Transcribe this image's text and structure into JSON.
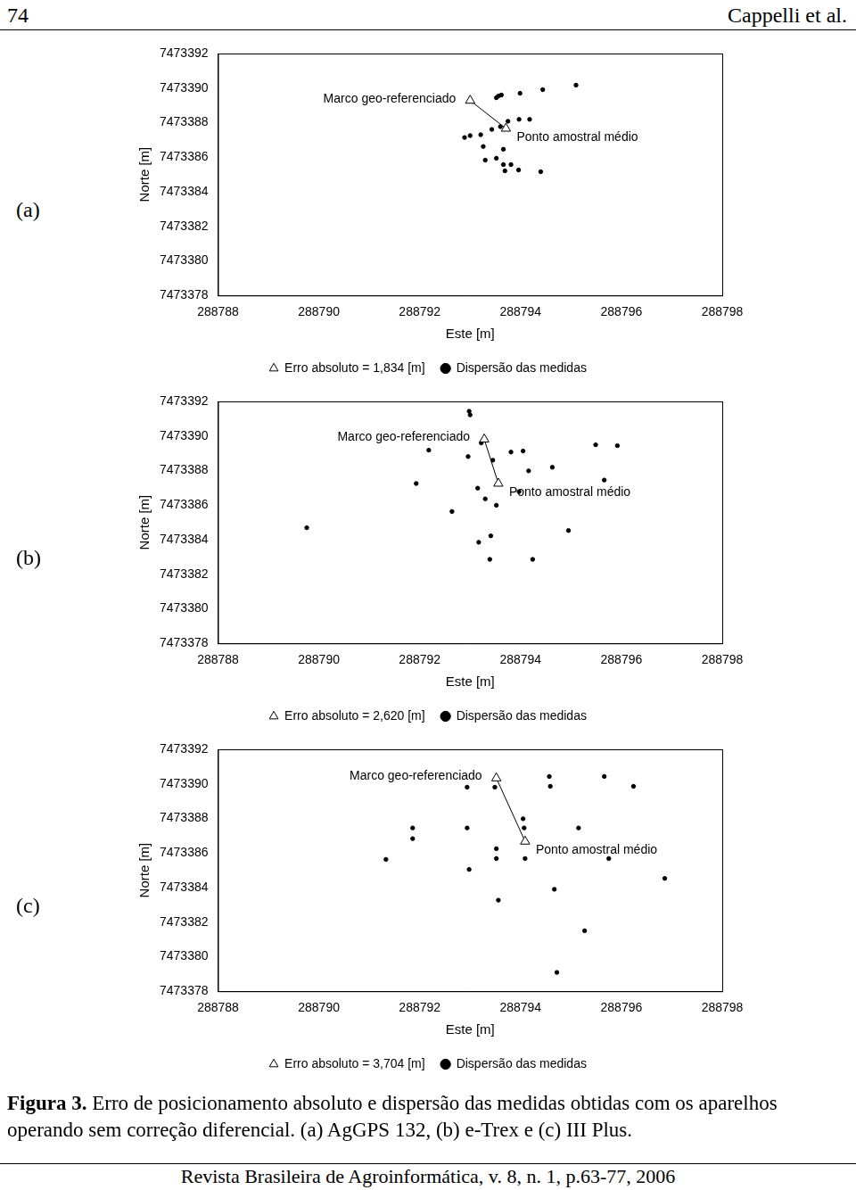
{
  "header": {
    "page_number": "74",
    "authors": "Cappelli et al."
  },
  "chart_data": [
    {
      "type": "scatter",
      "panel_label": "(a)",
      "x_label": "Este [m]",
      "y_label": "Norte [m]",
      "xlim": [
        288788,
        288798
      ],
      "xticks": [
        288788,
        288790,
        288792,
        288794,
        288796,
        288798
      ],
      "ylim": [
        7473378,
        7473392
      ],
      "yticks": [
        7473378,
        7473380,
        7473382,
        7473384,
        7473386,
        7473388,
        7473390,
        7473392
      ],
      "grid": false,
      "legend": "bottom",
      "annotations": [
        "Marco geo-referenciado",
        "Ponto amostral médio"
      ],
      "series": [
        {
          "name": "Erro absoluto = 1,834 [m]",
          "marker": "triangle",
          "line_style": "solid",
          "color": "#000000",
          "x": [
            288793.0,
            288793.71
          ],
          "y": [
            7473389.28,
            7473387.66
          ]
        },
        {
          "name": "Dispersão das medidas",
          "marker": "circle",
          "color": "#000000",
          "x": [
            288793.52,
            288793.56,
            288793.62,
            288793.99,
            288794.44,
            288795.1,
            288793.75,
            288793.97,
            288794.18,
            288793.43,
            288793.6,
            288792.89,
            288793.0,
            288793.21,
            288793.26,
            288793.66,
            288793.3,
            288793.52,
            288793.66,
            288793.81,
            288793.69,
            288793.96,
            288794.4
          ],
          "y": [
            7473389.44,
            7473389.54,
            7473389.6,
            7473389.7,
            7473389.91,
            7473390.17,
            7473388.08,
            7473388.19,
            7473388.19,
            7473387.61,
            7473387.77,
            7473387.14,
            7473387.25,
            7473387.3,
            7473386.62,
            7473386.46,
            7473385.83,
            7473385.94,
            7473385.57,
            7473385.57,
            7473385.21,
            7473385.26,
            7473385.16
          ]
        }
      ]
    },
    {
      "type": "scatter",
      "panel_label": "(b)",
      "x_label": "Este [m]",
      "y_label": "Norte [m]",
      "xlim": [
        288788,
        288798
      ],
      "xticks": [
        288788,
        288790,
        288792,
        288794,
        288796,
        288798
      ],
      "ylim": [
        7473378,
        7473392
      ],
      "yticks": [
        7473378,
        7473380,
        7473382,
        7473384,
        7473386,
        7473388,
        7473390,
        7473392
      ],
      "grid": false,
      "legend": "bottom",
      "annotations": [
        "Marco geo-referenciado",
        "Ponto amostral médio"
      ],
      "series": [
        {
          "name": "Erro absoluto = 2,620 [m]",
          "marker": "triangle",
          "line_style": "solid",
          "color": "#000000",
          "x": [
            288793.28,
            288793.56
          ],
          "y": [
            7473389.81,
            7473387.25
          ]
        },
        {
          "name": "Dispersão das medidas",
          "marker": "circle",
          "color": "#000000",
          "x": [
            288792.98,
            288793.0,
            288792.18,
            288793.22,
            288793.81,
            288794.05,
            288792.96,
            288793.45,
            288794.16,
            288794.63,
            288795.49,
            288795.92,
            288791.93,
            288793.15,
            288793.97,
            288793.3,
            288793.52,
            288795.66,
            288792.64,
            288789.76,
            288794.95,
            288793.41,
            288793.17,
            288793.39,
            288794.24
          ],
          "y": [
            7473391.43,
            7473391.22,
            7473389.18,
            7473389.6,
            7473389.07,
            7473389.13,
            7473388.81,
            7473388.6,
            7473387.98,
            7473388.19,
            7473389.49,
            7473389.44,
            7473387.25,
            7473386.98,
            7473386.78,
            7473386.36,
            7473385.99,
            7473387.45,
            7473385.63,
            7473384.69,
            7473384.53,
            7473384.22,
            7473383.85,
            7473382.86,
            7473382.86
          ]
        }
      ]
    },
    {
      "type": "scatter",
      "panel_label": "(c)",
      "x_label": "Este [m]",
      "y_label": "Norte [m]",
      "xlim": [
        288788,
        288798
      ],
      "xticks": [
        288788,
        288790,
        288792,
        288794,
        288796,
        288798
      ],
      "ylim": [
        7473378,
        7473392
      ],
      "yticks": [
        7473378,
        7473380,
        7473382,
        7473384,
        7473386,
        7473388,
        7473390,
        7473392
      ],
      "grid": false,
      "legend": "bottom",
      "annotations": [
        "Marco geo-referenciado",
        "Ponto amostral médio"
      ],
      "series": [
        {
          "name": "Erro absoluto = 3,704 [m]",
          "marker": "triangle",
          "line_style": "solid",
          "color": "#000000",
          "x": [
            288793.52,
            288794.09
          ],
          "y": [
            7473390.33,
            7473386.67
          ]
        },
        {
          "name": "Dispersão das medidas",
          "marker": "circle",
          "color": "#000000",
          "x": [
            288794.57,
            288795.66,
            288792.94,
            288793.49,
            288794.59,
            288796.24,
            288794.05,
            288791.86,
            288792.94,
            288794.07,
            288795.15,
            288791.86,
            288793.52,
            288791.33,
            288793.52,
            288794.09,
            288795.75,
            288792.98,
            288796.86,
            288794.67,
            288793.56,
            288795.27,
            288794.72
          ],
          "y": [
            7473390.43,
            7473390.43,
            7473389.81,
            7473389.81,
            7473389.86,
            7473389.86,
            7473387.98,
            7473387.45,
            7473387.45,
            7473387.45,
            7473387.45,
            7473386.83,
            7473386.25,
            7473385.63,
            7473385.68,
            7473385.68,
            7473385.68,
            7473385.05,
            7473384.53,
            7473383.9,
            7473383.27,
            7473381.5,
            7473379.09
          ]
        }
      ]
    }
  ],
  "caption": {
    "label": "Figura 3.",
    "text": "Erro de posicionamento absoluto e dispersão das medidas obtidas com os aparelhos operando sem correção diferencial. (a) AgGPS 132, (b) e-Trex e (c) III Plus."
  },
  "footer": "Revista Brasileira de Agroinformática, v. 8, n. 1, p.63-77, 2006"
}
